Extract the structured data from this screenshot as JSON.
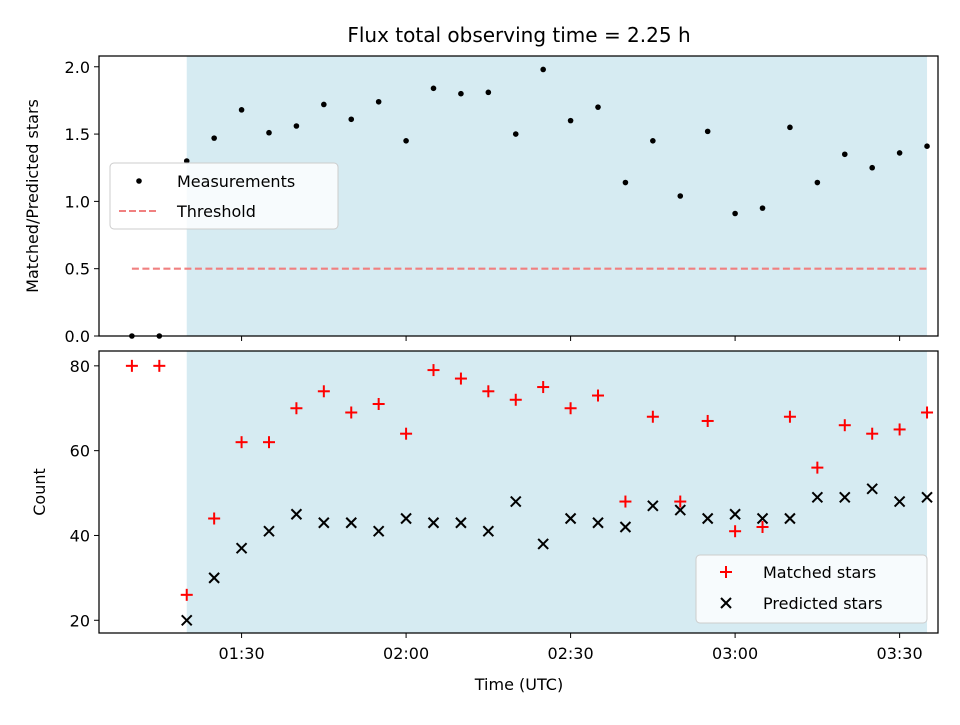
{
  "chart_data": {
    "type": "scatter",
    "title": "Flux total observing time = 2.25 h",
    "xlabel": "Time (UTC)",
    "x_ticks": [
      "01:30",
      "02:00",
      "02:30",
      "03:00",
      "03:30"
    ],
    "x_tick_minutes": [
      90,
      120,
      150,
      180,
      210
    ],
    "xlim_minutes": [
      64,
      217
    ],
    "shaded_interval_minutes": [
      80,
      215
    ],
    "shade_color": "#add8e6",
    "x_minutes": [
      70,
      75,
      80,
      85,
      90,
      95,
      100,
      105,
      110,
      115,
      120,
      125,
      130,
      135,
      140,
      145,
      150,
      155,
      160,
      165,
      170,
      175,
      180,
      185,
      190,
      195,
      200,
      205,
      210,
      215
    ],
    "top": {
      "ylabel": "Matched/Predicted stars",
      "ylim": [
        0,
        2.08
      ],
      "y_ticks": [
        "0.0",
        "0.5",
        "1.0",
        "1.5",
        "2.0"
      ],
      "y_tick_values": [
        0,
        0.5,
        1.0,
        1.5,
        2.0
      ],
      "series": [
        {
          "name": "Measurements",
          "color": "#000000",
          "marker": "dot",
          "values": [
            0,
            0,
            1.3,
            1.47,
            1.68,
            1.51,
            1.56,
            1.72,
            1.61,
            1.74,
            1.45,
            1.84,
            1.8,
            1.81,
            1.5,
            1.98,
            1.6,
            1.7,
            1.14,
            1.45,
            1.04,
            1.52,
            0.91,
            0.95,
            1.55,
            1.14,
            1.35,
            1.25,
            1.36,
            1.41
          ]
        },
        {
          "name": "Threshold",
          "color": "#f08080",
          "style": "dashed",
          "value": 0.5,
          "x_range_minutes": [
            70,
            215
          ]
        }
      ],
      "legend": [
        "Measurements",
        "Threshold"
      ],
      "legend_position": "center-left"
    },
    "bottom": {
      "ylabel": "Count",
      "ylim": [
        17,
        83.5
      ],
      "y_ticks": [
        "20",
        "40",
        "60",
        "80"
      ],
      "y_tick_values": [
        20,
        40,
        60,
        80
      ],
      "series": [
        {
          "name": "Matched stars",
          "color": "#ff0000",
          "marker": "plus",
          "values": [
            80,
            80,
            26,
            44,
            62,
            62,
            70,
            74,
            69,
            71,
            64,
            79,
            77,
            74,
            72,
            75,
            70,
            73,
            48,
            68,
            48,
            67,
            41,
            42,
            68,
            56,
            66,
            64,
            65,
            69
          ]
        },
        {
          "name": "Predicted stars",
          "color": "#000000",
          "marker": "x",
          "values": [
            null,
            null,
            20,
            30,
            37,
            41,
            45,
            43,
            43,
            41,
            44,
            43,
            43,
            41,
            48,
            38,
            44,
            43,
            42,
            47,
            46,
            44,
            45,
            44,
            44,
            49,
            49,
            51,
            48,
            49
          ]
        }
      ],
      "legend": [
        "Matched stars",
        "Predicted stars"
      ],
      "legend_position": "bottom-right"
    },
    "grid": false
  }
}
